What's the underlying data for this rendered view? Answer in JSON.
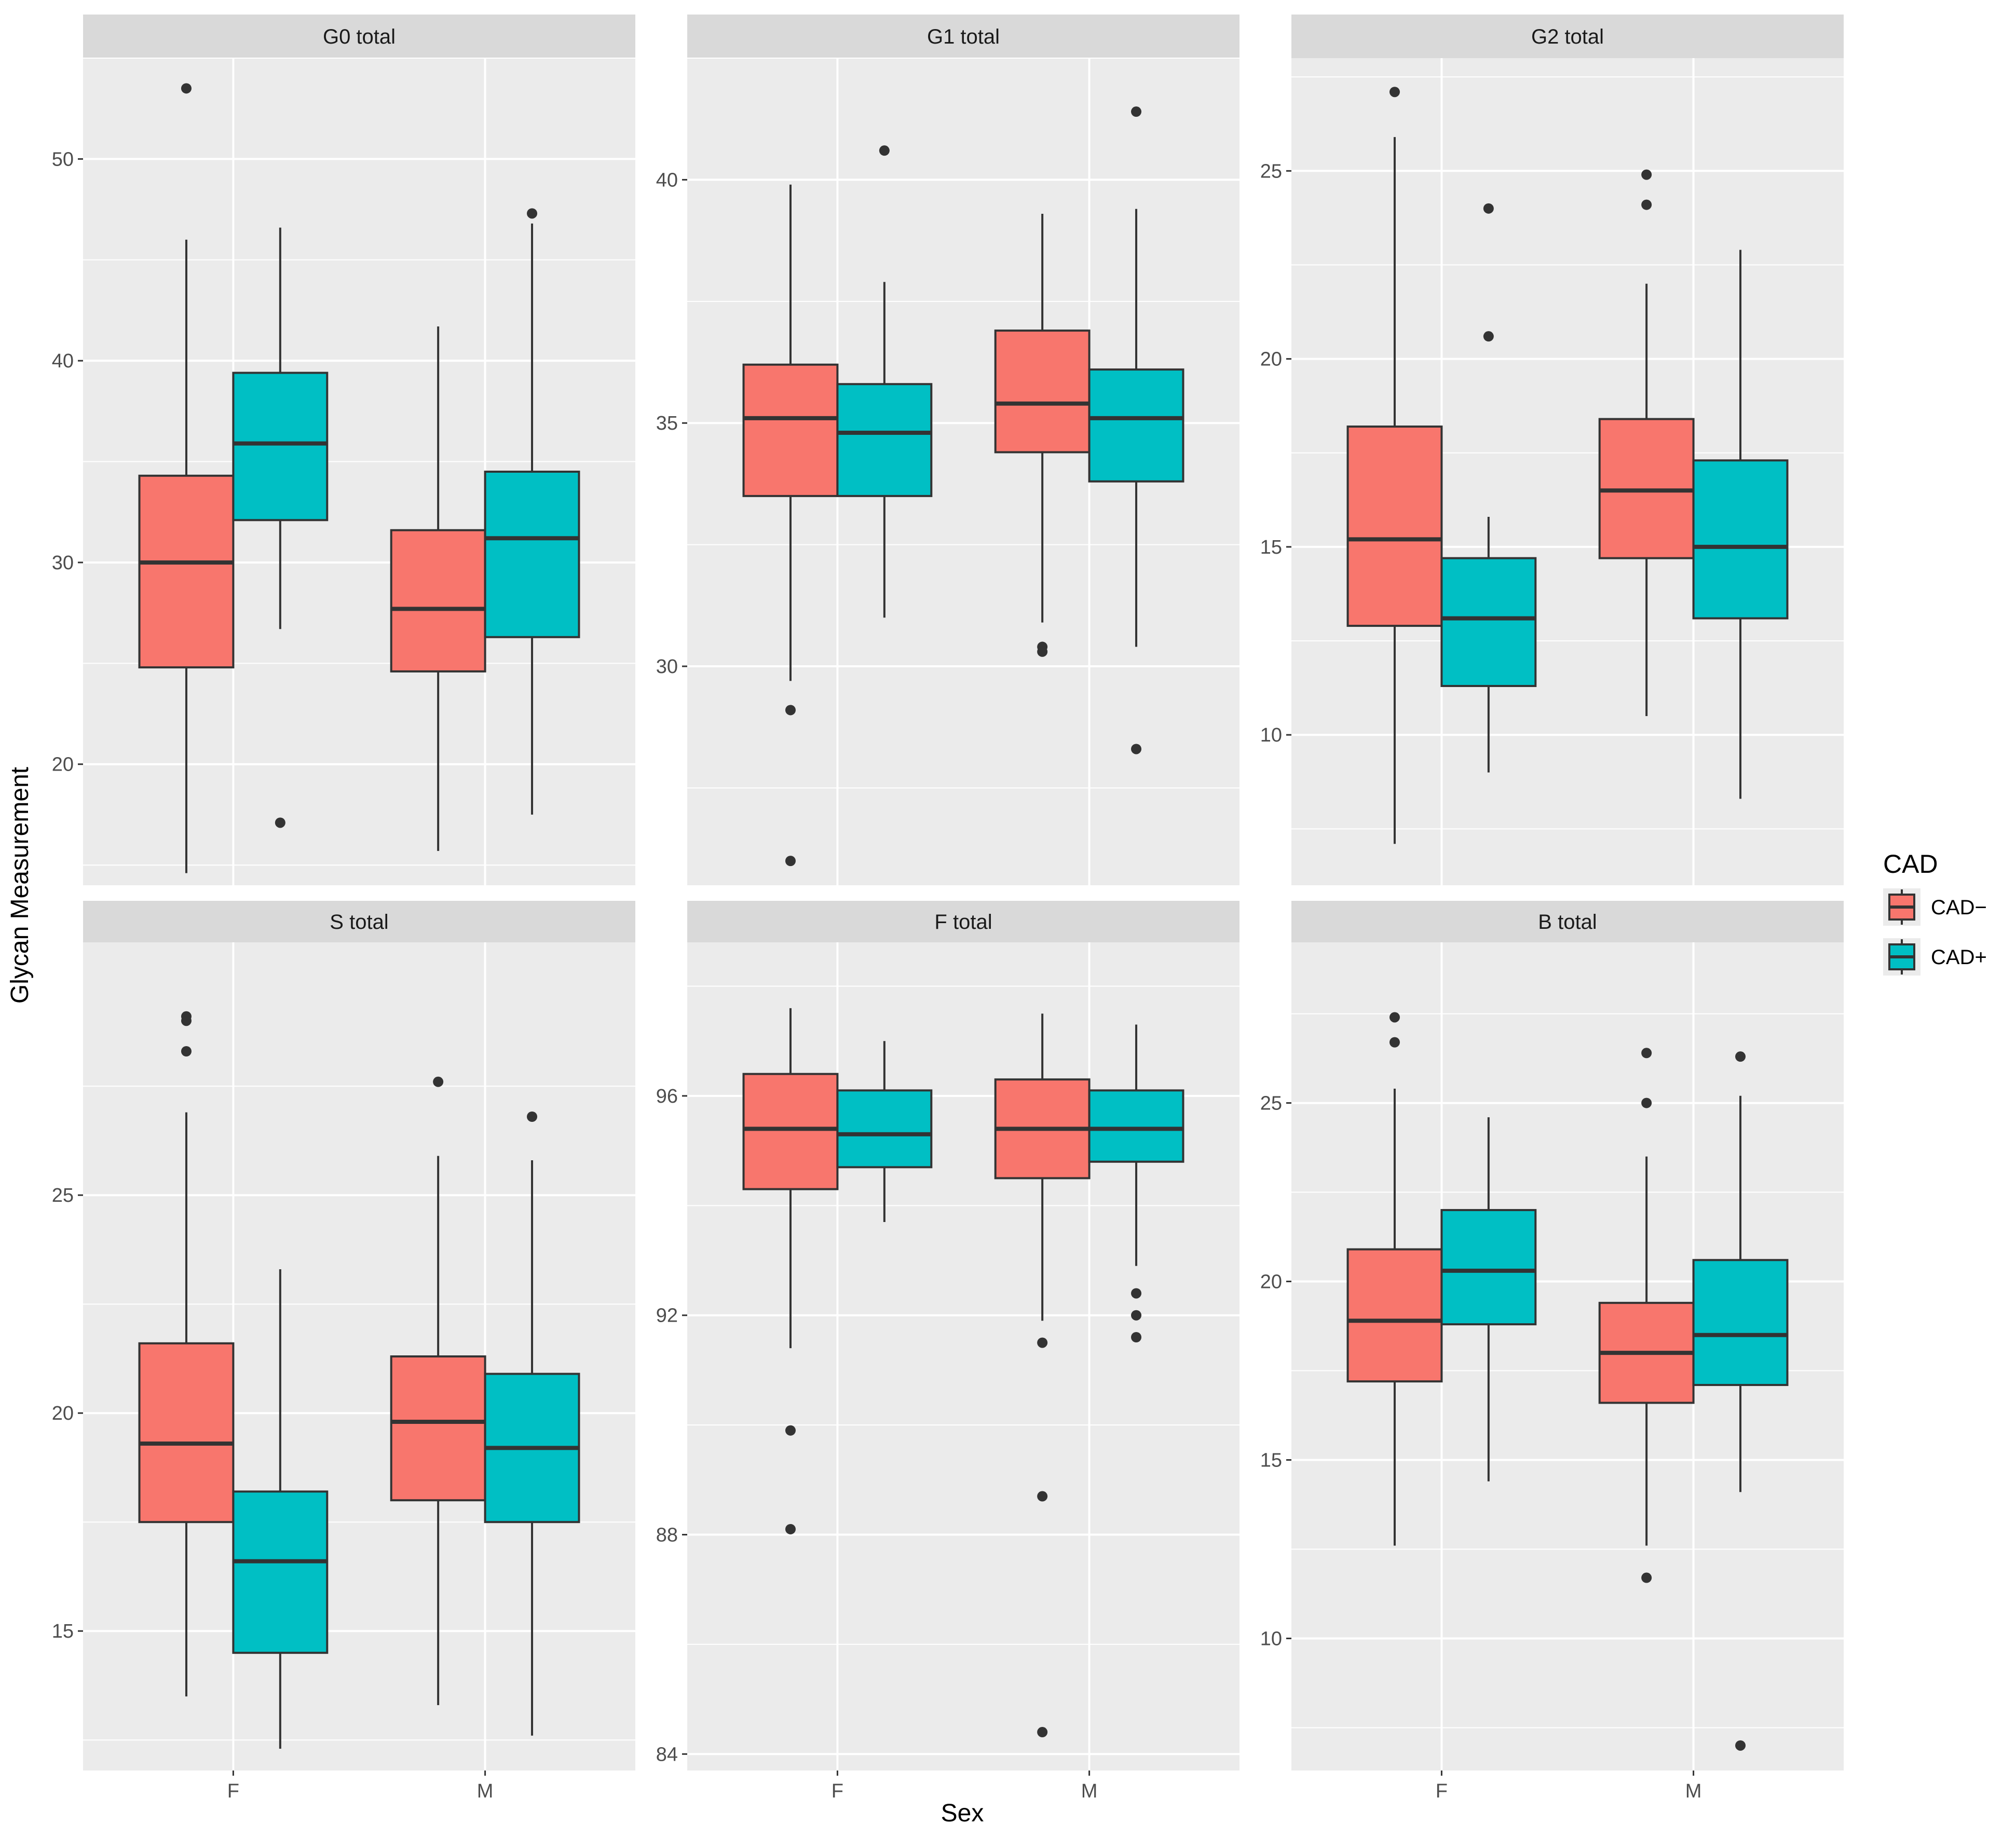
{
  "chart_data": {
    "type": "boxplot",
    "xlabel": "Sex",
    "ylabel": "Glycan Measurement",
    "categories": [
      "F",
      "M"
    ],
    "legend": {
      "title": "CAD",
      "position": "right",
      "entries": [
        {
          "label": "CAD−",
          "color": "#F8766D"
        },
        {
          "label": "CAD+",
          "color": "#00BFC4"
        }
      ]
    },
    "colors": {
      "panel_bg": "#EBEBEB",
      "strip_bg": "#D9D9D9",
      "grid": "#FFFFFF",
      "outline": "#333333"
    },
    "panels": [
      {
        "title": "G0 total",
        "ylim": [
          14.0,
          55.0
        ],
        "yticks": [
          20,
          30,
          40,
          50
        ],
        "ytick_labels": [
          "20",
          "30",
          "40",
          "50"
        ],
        "groups": [
          {
            "x": "F",
            "series": "CAD−",
            "q1": 24.8,
            "median": 30.0,
            "q3": 34.3,
            "whisker_low": 14.6,
            "whisker_high": 46.0,
            "outliers": [
              53.5
            ]
          },
          {
            "x": "F",
            "series": "CAD+",
            "q1": 32.1,
            "median": 35.9,
            "q3": 39.4,
            "whisker_low": 26.7,
            "whisker_high": 46.6,
            "outliers": [
              17.1
            ]
          },
          {
            "x": "M",
            "series": "CAD−",
            "q1": 24.6,
            "median": 27.7,
            "q3": 31.6,
            "whisker_low": 15.7,
            "whisker_high": 41.7,
            "outliers": []
          },
          {
            "x": "M",
            "series": "CAD+",
            "q1": 26.3,
            "median": 31.2,
            "q3": 34.5,
            "whisker_low": 17.5,
            "whisker_high": 46.8,
            "outliers": [
              47.3
            ]
          }
        ]
      },
      {
        "title": "G1 total",
        "ylim": [
          25.5,
          42.5
        ],
        "yticks": [
          30,
          35,
          40
        ],
        "ytick_labels": [
          "30",
          "35",
          "40"
        ],
        "groups": [
          {
            "x": "F",
            "series": "CAD−",
            "q1": 33.5,
            "median": 35.1,
            "q3": 36.2,
            "whisker_low": 29.7,
            "whisker_high": 39.9,
            "outliers": [
              29.1,
              26.0
            ]
          },
          {
            "x": "F",
            "series": "CAD+",
            "q1": 33.5,
            "median": 34.8,
            "q3": 35.8,
            "whisker_low": 31.0,
            "whisker_high": 37.9,
            "outliers": [
              40.6
            ]
          },
          {
            "x": "M",
            "series": "CAD−",
            "q1": 34.4,
            "median": 35.4,
            "q3": 36.9,
            "whisker_low": 30.9,
            "whisker_high": 39.3,
            "outliers": [
              30.4,
              30.3
            ]
          },
          {
            "x": "M",
            "series": "CAD+",
            "q1": 33.8,
            "median": 35.1,
            "q3": 36.1,
            "whisker_low": 30.4,
            "whisker_high": 39.4,
            "outliers": [
              41.4,
              28.3
            ]
          }
        ]
      },
      {
        "title": "G2 total",
        "ylim": [
          6.0,
          28.0
        ],
        "yticks": [
          10,
          15,
          20,
          25
        ],
        "ytick_labels": [
          "10",
          "15",
          "20",
          "25"
        ],
        "groups": [
          {
            "x": "F",
            "series": "CAD−",
            "q1": 12.9,
            "median": 15.2,
            "q3": 18.2,
            "whisker_low": 7.1,
            "whisker_high": 25.9,
            "outliers": [
              27.1
            ]
          },
          {
            "x": "F",
            "series": "CAD+",
            "q1": 11.3,
            "median": 13.1,
            "q3": 14.7,
            "whisker_low": 9.0,
            "whisker_high": 15.8,
            "outliers": [
              24.0,
              20.6
            ]
          },
          {
            "x": "M",
            "series": "CAD−",
            "q1": 14.7,
            "median": 16.5,
            "q3": 18.4,
            "whisker_low": 10.5,
            "whisker_high": 22.0,
            "outliers": [
              24.9,
              24.1
            ]
          },
          {
            "x": "M",
            "series": "CAD+",
            "q1": 13.1,
            "median": 15.0,
            "q3": 17.3,
            "whisker_low": 8.3,
            "whisker_high": 22.9,
            "outliers": []
          }
        ]
      },
      {
        "title": "S total",
        "ylim": [
          11.8,
          30.8
        ],
        "yticks": [
          15,
          20,
          25
        ],
        "ytick_labels": [
          "15",
          "20",
          "25"
        ],
        "groups": [
          {
            "x": "F",
            "series": "CAD−",
            "q1": 17.5,
            "median": 19.3,
            "q3": 21.6,
            "whisker_low": 13.5,
            "whisker_high": 26.9,
            "outliers": [
              29.1,
              29.0,
              28.3
            ]
          },
          {
            "x": "F",
            "series": "CAD+",
            "q1": 14.5,
            "median": 16.6,
            "q3": 18.2,
            "whisker_low": 12.3,
            "whisker_high": 23.3,
            "outliers": []
          },
          {
            "x": "M",
            "series": "CAD−",
            "q1": 18.0,
            "median": 19.8,
            "q3": 21.3,
            "whisker_low": 13.3,
            "whisker_high": 25.9,
            "outliers": [
              27.6
            ]
          },
          {
            "x": "M",
            "series": "CAD+",
            "q1": 17.5,
            "median": 19.2,
            "q3": 20.9,
            "whisker_low": 12.6,
            "whisker_high": 25.8,
            "outliers": [
              26.8
            ]
          }
        ]
      },
      {
        "title": "F total",
        "ylim": [
          83.7,
          98.8
        ],
        "yticks": [
          84,
          88,
          92,
          96
        ],
        "ytick_labels": [
          "84",
          "88",
          "92",
          "96"
        ],
        "groups": [
          {
            "x": "F",
            "series": "CAD−",
            "q1": 94.3,
            "median": 95.4,
            "q3": 96.4,
            "whisker_low": 91.4,
            "whisker_high": 97.6,
            "outliers": [
              89.9,
              88.1
            ]
          },
          {
            "x": "F",
            "series": "CAD+",
            "q1": 94.7,
            "median": 95.3,
            "q3": 96.1,
            "whisker_low": 93.7,
            "whisker_high": 97.0,
            "outliers": []
          },
          {
            "x": "M",
            "series": "CAD−",
            "q1": 94.5,
            "median": 95.4,
            "q3": 96.3,
            "whisker_low": 91.9,
            "whisker_high": 97.5,
            "outliers": [
              91.5,
              88.7,
              84.4
            ]
          },
          {
            "x": "M",
            "series": "CAD+",
            "q1": 94.8,
            "median": 95.4,
            "q3": 96.1,
            "whisker_low": 92.9,
            "whisker_high": 97.3,
            "outliers": [
              92.4,
              92.0,
              91.6
            ]
          }
        ]
      },
      {
        "title": "B total",
        "ylim": [
          6.3,
          29.5
        ],
        "yticks": [
          10,
          15,
          20,
          25
        ],
        "ytick_labels": [
          "10",
          "15",
          "20",
          "25"
        ],
        "groups": [
          {
            "x": "F",
            "series": "CAD−",
            "q1": 17.2,
            "median": 18.9,
            "q3": 20.9,
            "whisker_low": 12.6,
            "whisker_high": 25.4,
            "outliers": [
              27.4,
              26.7
            ]
          },
          {
            "x": "F",
            "series": "CAD+",
            "q1": 18.8,
            "median": 20.3,
            "q3": 22.0,
            "whisker_low": 14.4,
            "whisker_high": 24.6,
            "outliers": []
          },
          {
            "x": "M",
            "series": "CAD−",
            "q1": 16.6,
            "median": 18.0,
            "q3": 19.4,
            "whisker_low": 12.6,
            "whisker_high": 23.5,
            "outliers": [
              26.4,
              25.0,
              11.7
            ]
          },
          {
            "x": "M",
            "series": "CAD+",
            "q1": 17.1,
            "median": 18.5,
            "q3": 20.6,
            "whisker_low": 14.1,
            "whisker_high": 25.2,
            "outliers": [
              26.3,
              7.0
            ]
          }
        ]
      }
    ]
  }
}
